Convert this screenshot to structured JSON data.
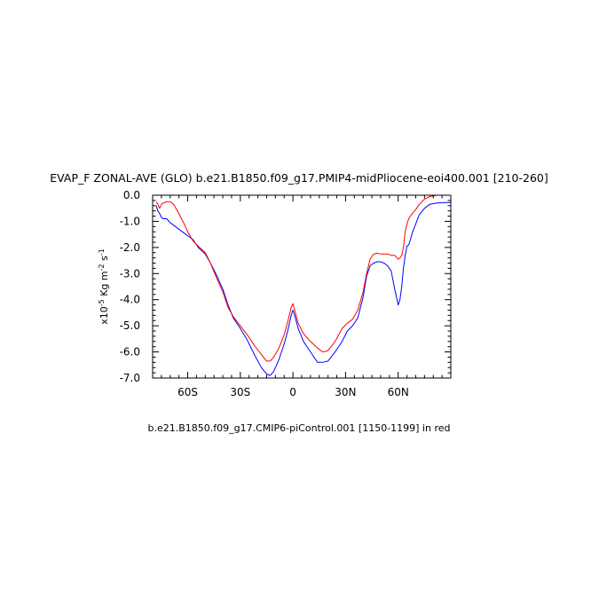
{
  "chart_data": {
    "type": "line",
    "title": "EVAP_F ZONAL-AVE (GLO) b.e21.B1850.f09_g17.PMIP4-midPliocene-eoi400.001 [210-260]",
    "subtitle": "b.e21.B1850.f09_g17.CMIP6-piControl.001 [1150-1199] in red",
    "ylabel_prefix": "x10",
    "ylabel_exp": "-5",
    "ylabel_unit1": " Kg m",
    "ylabel_exp2": "-2",
    "ylabel_unit2": " s",
    "ylabel_exp3": "-1",
    "xlim": [
      -80,
      90
    ],
    "ylim": [
      -7.0,
      0.0
    ],
    "x_ticks": [
      {
        "value": -60,
        "label": "60S"
      },
      {
        "value": -30,
        "label": "30S"
      },
      {
        "value": 0,
        "label": "0"
      },
      {
        "value": 30,
        "label": "30N"
      },
      {
        "value": 60,
        "label": "60N"
      }
    ],
    "y_ticks": [
      {
        "value": 0.0,
        "label": "0.0"
      },
      {
        "value": -1.0,
        "label": "-1.0"
      },
      {
        "value": -2.0,
        "label": "-2.0"
      },
      {
        "value": -3.0,
        "label": "-3.0"
      },
      {
        "value": -4.0,
        "label": "-4.0"
      },
      {
        "value": -5.0,
        "label": "-5.0"
      },
      {
        "value": -6.0,
        "label": "-6.0"
      },
      {
        "value": -7.0,
        "label": "-7.0"
      }
    ],
    "series": [
      {
        "color": "#0000ff",
        "x": [
          -78,
          -77,
          -76,
          -75,
          -74,
          -72,
          -70,
          -68,
          -65,
          -62,
          -60,
          -57,
          -54,
          -50,
          -47,
          -44,
          -40,
          -37,
          -34,
          -30,
          -26,
          -22,
          -18,
          -15,
          -13,
          -11,
          -8,
          -5,
          -3,
          -1,
          0,
          1,
          3,
          6,
          10,
          14,
          17,
          20,
          24,
          28,
          31,
          34,
          37,
          40,
          42,
          44,
          46,
          48,
          50,
          52,
          54,
          56,
          58,
          60,
          61,
          62,
          63,
          64,
          65,
          66,
          67,
          68,
          70,
          72,
          75,
          78,
          82,
          86,
          90
        ],
        "y": [
          -0.4,
          -0.6,
          -0.7,
          -0.85,
          -0.9,
          -0.9,
          -1.05,
          -1.15,
          -1.3,
          -1.45,
          -1.55,
          -1.7,
          -2.0,
          -2.25,
          -2.6,
          -3.0,
          -3.6,
          -4.2,
          -4.7,
          -5.1,
          -5.55,
          -6.1,
          -6.6,
          -6.85,
          -6.9,
          -6.75,
          -6.3,
          -5.7,
          -5.2,
          -4.6,
          -4.4,
          -4.6,
          -5.1,
          -5.6,
          -6.0,
          -6.4,
          -6.4,
          -6.35,
          -6.0,
          -5.6,
          -5.2,
          -5.0,
          -4.7,
          -3.9,
          -3.1,
          -2.7,
          -2.6,
          -2.55,
          -2.55,
          -2.6,
          -2.7,
          -2.9,
          -3.6,
          -4.2,
          -4.0,
          -3.5,
          -2.8,
          -2.3,
          -1.95,
          -1.9,
          -1.7,
          -1.45,
          -1.1,
          -0.75,
          -0.5,
          -0.35,
          -0.3,
          -0.28,
          -0.28
        ]
      },
      {
        "color": "#ff0000",
        "x": [
          -78,
          -77,
          -76,
          -75,
          -74,
          -72,
          -70,
          -68,
          -65,
          -62,
          -60,
          -57,
          -54,
          -50,
          -47,
          -44,
          -40,
          -37,
          -34,
          -30,
          -26,
          -22,
          -18,
          -15,
          -13,
          -11,
          -8,
          -5,
          -3,
          -1,
          0,
          1,
          3,
          6,
          10,
          14,
          17,
          20,
          24,
          28,
          31,
          34,
          37,
          40,
          42,
          44,
          46,
          48,
          50,
          52,
          54,
          56,
          58,
          60,
          61,
          62,
          63,
          64,
          65,
          66,
          67,
          68,
          70,
          72,
          75,
          78,
          82,
          86,
          90
        ],
        "y": [
          -0.25,
          -0.35,
          -0.5,
          -0.35,
          -0.3,
          -0.25,
          -0.25,
          -0.35,
          -0.7,
          -1.1,
          -1.4,
          -1.75,
          -1.95,
          -2.2,
          -2.6,
          -3.1,
          -3.7,
          -4.3,
          -4.65,
          -5.0,
          -5.35,
          -5.75,
          -6.1,
          -6.35,
          -6.35,
          -6.2,
          -5.85,
          -5.35,
          -4.85,
          -4.3,
          -4.15,
          -4.4,
          -4.9,
          -5.3,
          -5.6,
          -5.85,
          -6.0,
          -5.95,
          -5.6,
          -5.1,
          -4.9,
          -4.75,
          -4.4,
          -3.7,
          -3.0,
          -2.45,
          -2.25,
          -2.22,
          -2.25,
          -2.25,
          -2.25,
          -2.3,
          -2.3,
          -2.45,
          -2.4,
          -2.3,
          -2.0,
          -1.4,
          -1.1,
          -0.9,
          -0.8,
          -0.7,
          -0.55,
          -0.35,
          -0.15,
          -0.05,
          0.0,
          0.0,
          0.0
        ]
      }
    ]
  }
}
